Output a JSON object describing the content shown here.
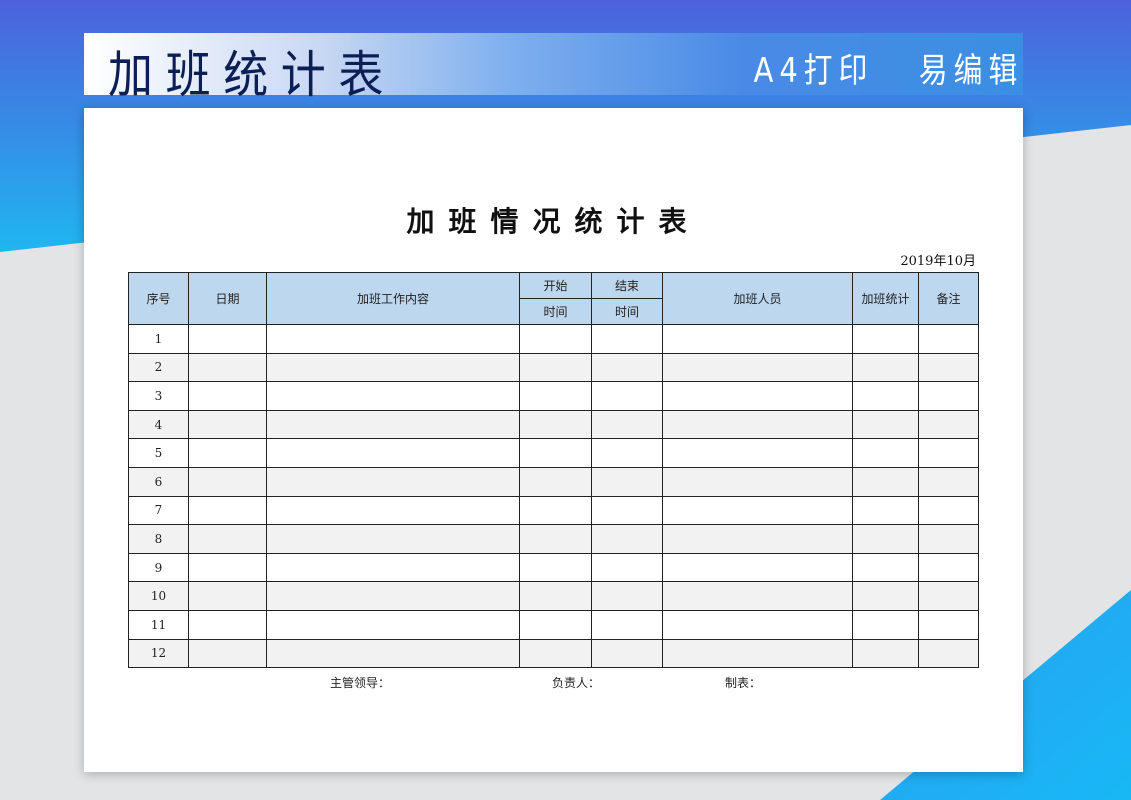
{
  "banner": {
    "title": "加班统计表",
    "tagline": "A4打印   易编辑"
  },
  "document": {
    "title": "加班情况统计表",
    "date": "2019年10月",
    "headers": {
      "no": "序号",
      "date": "日期",
      "content": "加班工作内容",
      "start_top": "开始",
      "start_bottom": "时间",
      "end_top": "结束",
      "end_bottom": "时间",
      "staff": "加班人员",
      "stats": "加班统计",
      "remarks": "备注"
    },
    "rows": [
      "1",
      "2",
      "3",
      "4",
      "5",
      "6",
      "7",
      "8",
      "9",
      "10",
      "11",
      "12"
    ],
    "footer": {
      "supervisor": "主管领导：",
      "responsible": "负责人：",
      "prepared_by": "制表："
    }
  },
  "colors": {
    "header_fill": "#bdd7ee",
    "banner_text": "#0c1f55",
    "bg_blue": "#3b82e3"
  }
}
